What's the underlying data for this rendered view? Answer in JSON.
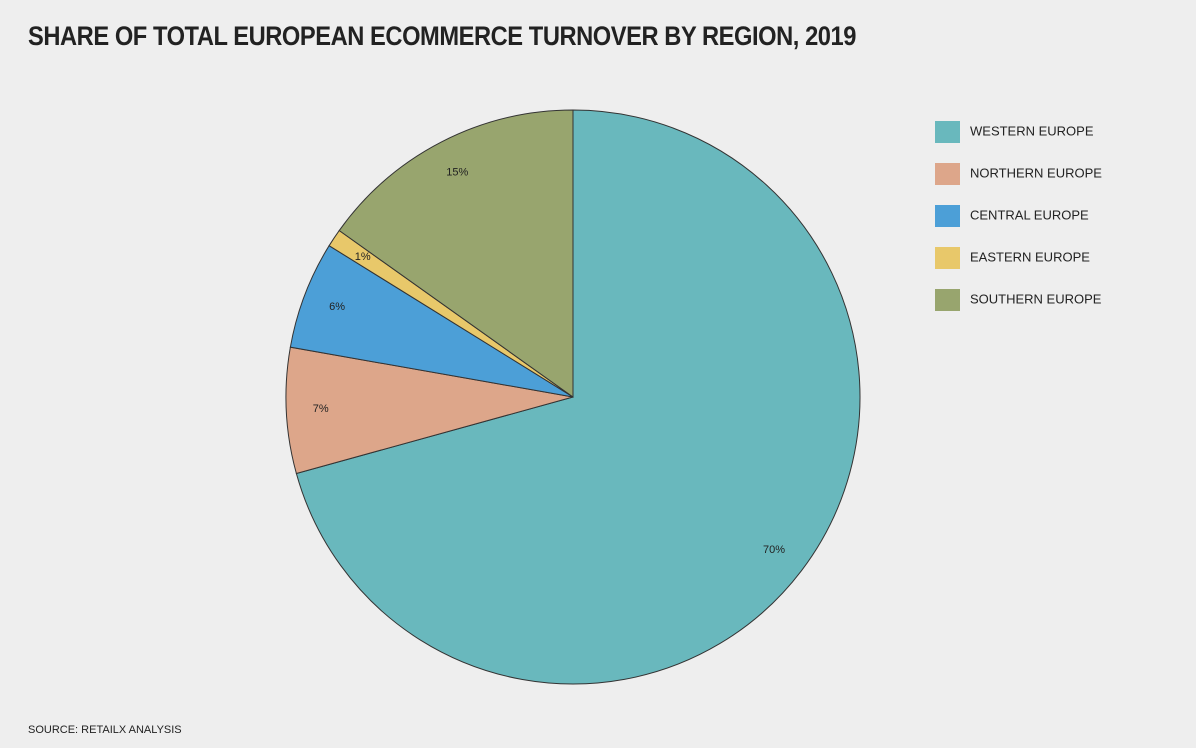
{
  "chart_data": {
    "type": "pie",
    "title": "SHARE OF TOTAL EUROPEAN ECOMMERCE TURNOVER BY REGION, 2019",
    "source": "SOURCE: RETAILX ANALYSIS",
    "categories": [
      "WESTERN EUROPE",
      "NORTHERN EUROPE",
      "CENTRAL EUROPE",
      "EASTERN EUROPE",
      "SOUTHERN EUROPE"
    ],
    "values": [
      70,
      7,
      6,
      1,
      15
    ],
    "value_labels": [
      "70%",
      "7%",
      "6%",
      "1%",
      "15%"
    ],
    "colors": [
      "#69b8bd",
      "#dda68a",
      "#4c9fd7",
      "#e8c86a",
      "#98a56e"
    ],
    "legend": "right"
  }
}
